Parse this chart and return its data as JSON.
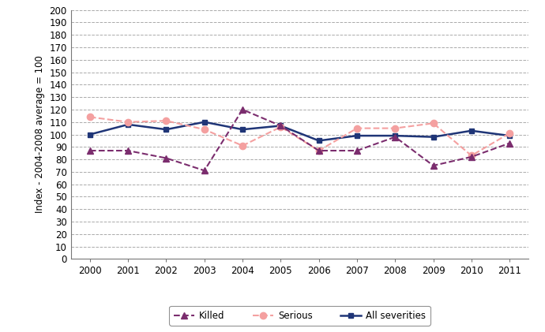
{
  "years": [
    2000,
    2001,
    2002,
    2003,
    2004,
    2005,
    2006,
    2007,
    2008,
    2009,
    2010,
    2011
  ],
  "killed": [
    87,
    87,
    81,
    71,
    120,
    107,
    87,
    87,
    98,
    75,
    82,
    93
  ],
  "serious": [
    114,
    110,
    111,
    104,
    91,
    106,
    87,
    105,
    105,
    109,
    83,
    101
  ],
  "all_severities": [
    100,
    108,
    104,
    110,
    104,
    107,
    95,
    99,
    99,
    98,
    103,
    99
  ],
  "killed_color": "#7B2D6E",
  "serious_color": "#F4A0A0",
  "all_sev_color": "#1F3577",
  "ylabel": "Index - 2004-2008 average = 100",
  "ylim": [
    0,
    200
  ],
  "grid_color": "#aaaaaa",
  "bg_color": "#ffffff",
  "legend_killed": "Killed",
  "legend_serious": "Serious",
  "legend_all": "All severities"
}
